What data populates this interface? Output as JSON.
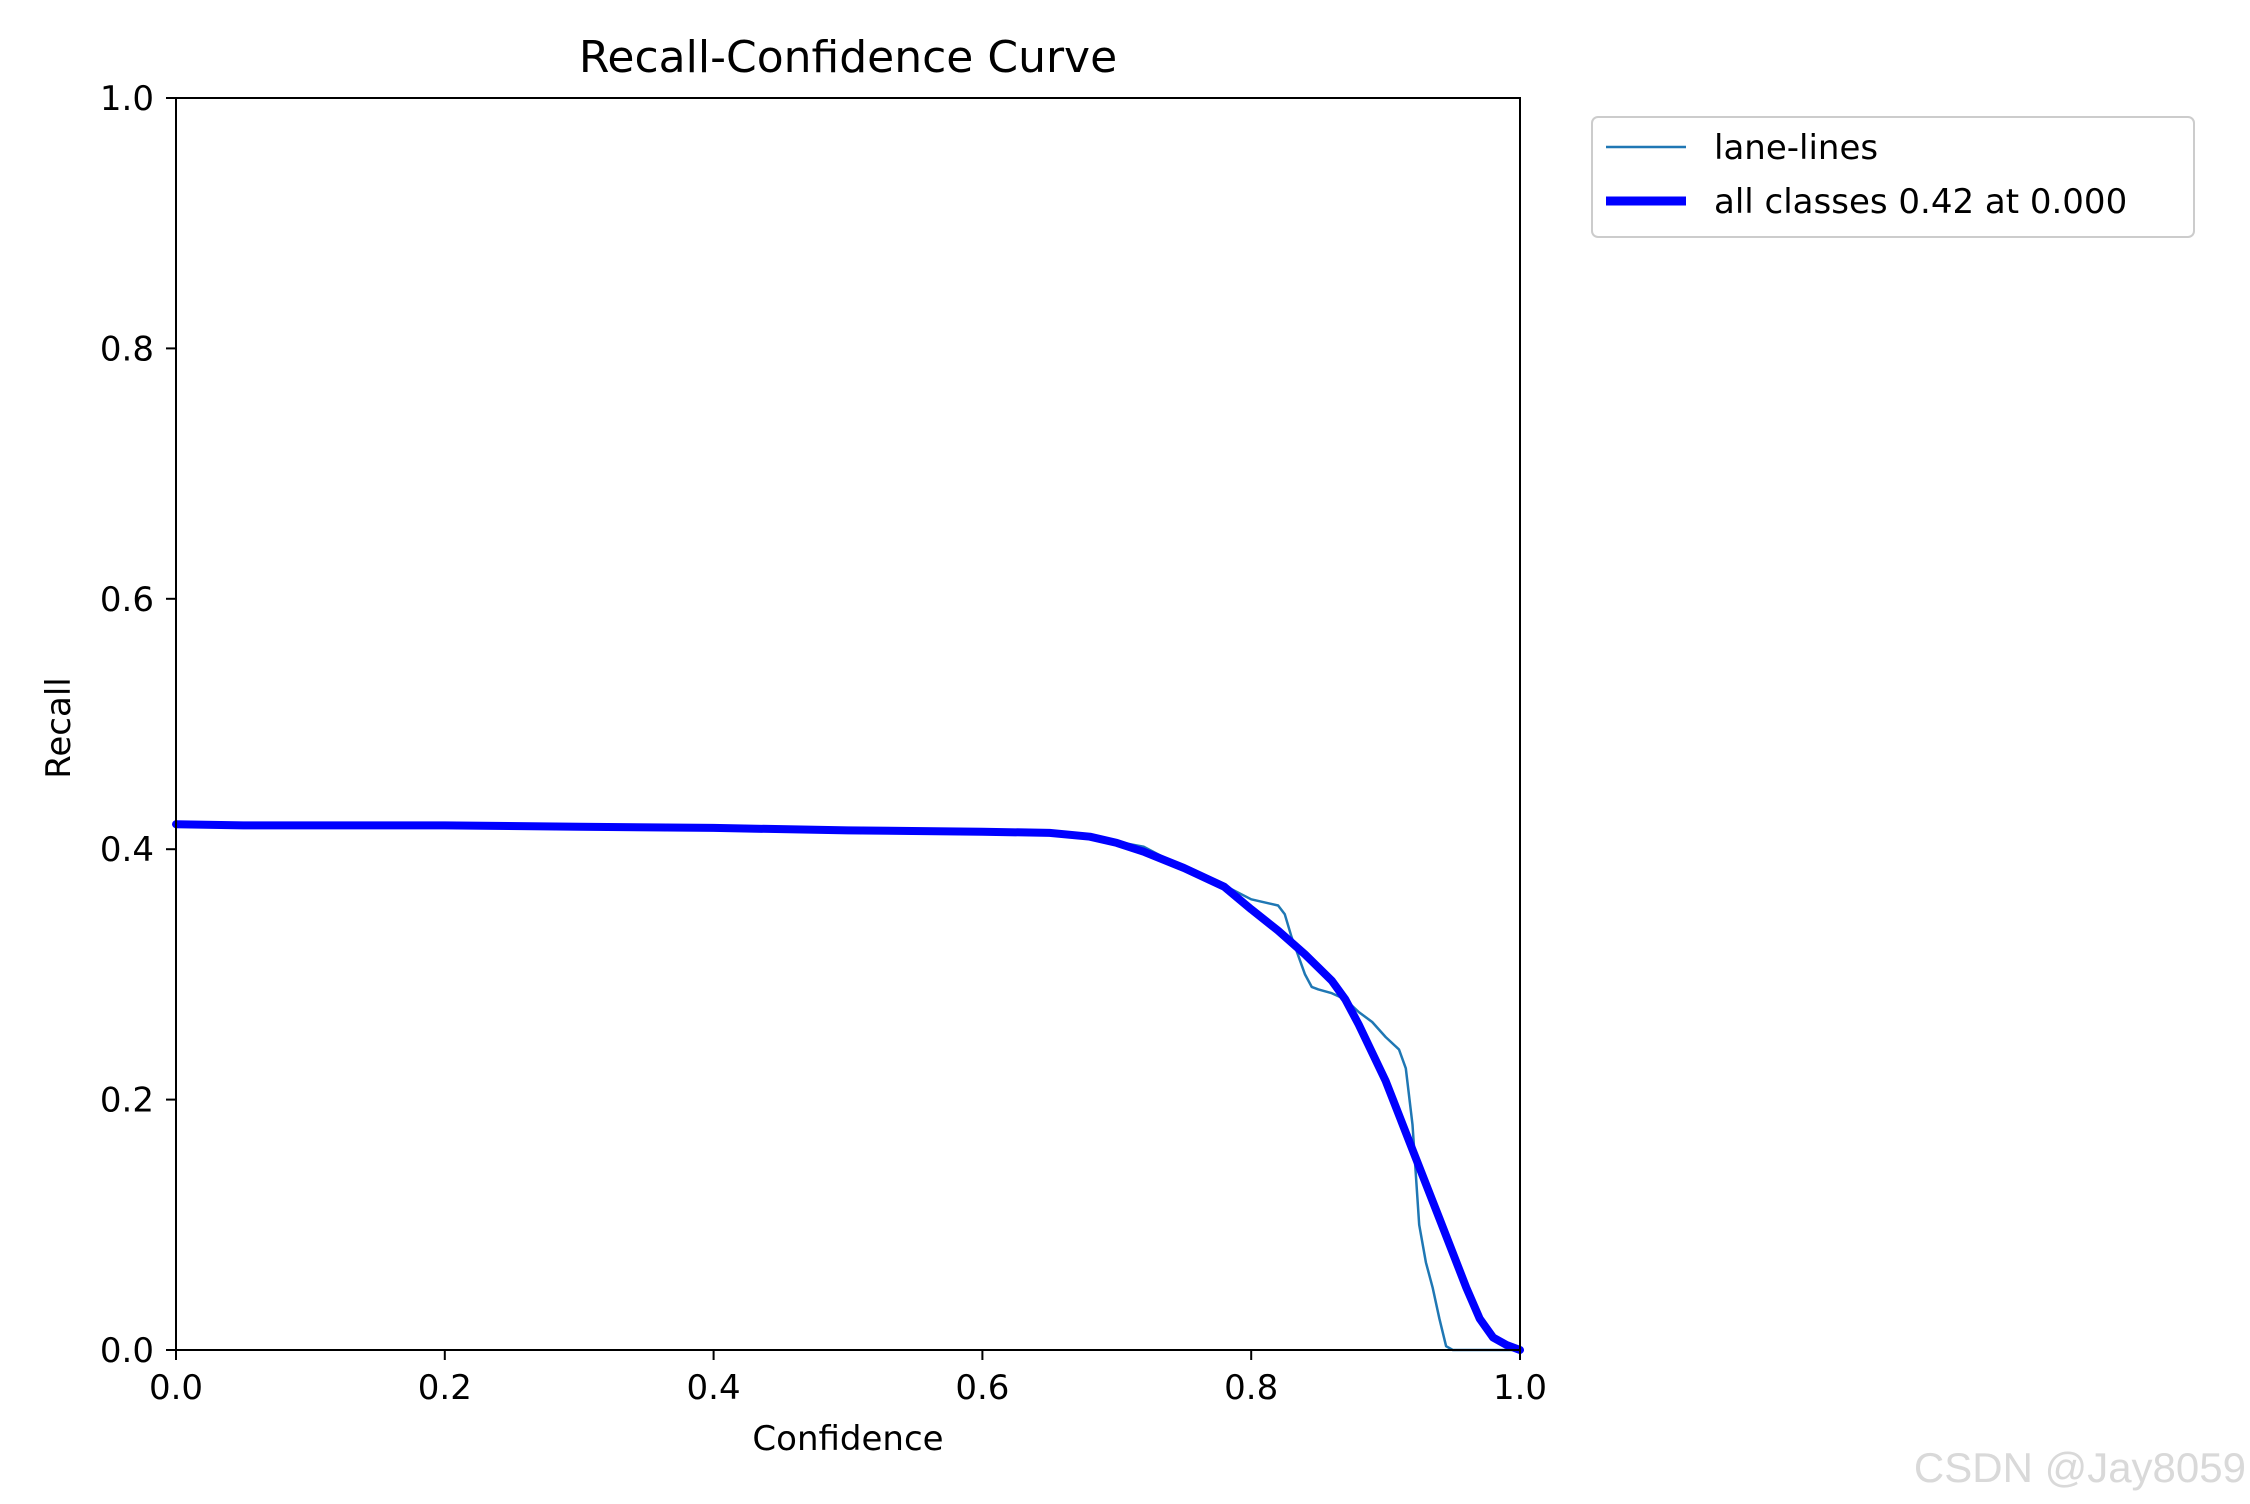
{
  "chart_data": {
    "type": "line",
    "title": "Recall-Confidence Curve",
    "xlabel": "Confidence",
    "ylabel": "Recall",
    "xlim": [
      0,
      1
    ],
    "ylim": [
      0,
      1
    ],
    "x_ticks": [
      "0.0",
      "0.2",
      "0.4",
      "0.6",
      "0.8",
      "1.0"
    ],
    "y_ticks": [
      "0.0",
      "0.2",
      "0.4",
      "0.6",
      "0.8",
      "1.0"
    ],
    "grid": false,
    "legend_position": "outside-top-right",
    "series": [
      {
        "name": "lane-lines",
        "color": "#1f77b4",
        "style": "thin",
        "x": [
          0.0,
          0.05,
          0.1,
          0.2,
          0.3,
          0.4,
          0.5,
          0.6,
          0.65,
          0.68,
          0.7,
          0.72,
          0.75,
          0.78,
          0.8,
          0.82,
          0.825,
          0.83,
          0.84,
          0.845,
          0.85,
          0.86,
          0.87,
          0.88,
          0.89,
          0.9,
          0.91,
          0.915,
          0.92,
          0.925,
          0.93,
          0.935,
          0.94,
          0.945,
          0.95,
          0.96,
          0.98,
          1.0
        ],
        "y": [
          0.42,
          0.419,
          0.419,
          0.419,
          0.418,
          0.417,
          0.415,
          0.414,
          0.413,
          0.41,
          0.406,
          0.402,
          0.385,
          0.371,
          0.36,
          0.355,
          0.348,
          0.33,
          0.3,
          0.29,
          0.288,
          0.285,
          0.28,
          0.27,
          0.262,
          0.25,
          0.24,
          0.225,
          0.18,
          0.1,
          0.07,
          0.05,
          0.025,
          0.003,
          0.0,
          0.0,
          0.0,
          0.0
        ]
      },
      {
        "name": "all classes 0.42 at 0.000",
        "color": "#0000ff",
        "style": "thick",
        "x": [
          0.0,
          0.05,
          0.1,
          0.2,
          0.3,
          0.4,
          0.5,
          0.6,
          0.65,
          0.68,
          0.7,
          0.72,
          0.75,
          0.78,
          0.8,
          0.82,
          0.84,
          0.86,
          0.87,
          0.88,
          0.9,
          0.92,
          0.94,
          0.96,
          0.97,
          0.98,
          0.99,
          1.0
        ],
        "y": [
          0.42,
          0.419,
          0.419,
          0.419,
          0.418,
          0.417,
          0.415,
          0.414,
          0.413,
          0.41,
          0.405,
          0.398,
          0.385,
          0.37,
          0.352,
          0.335,
          0.316,
          0.295,
          0.28,
          0.26,
          0.215,
          0.16,
          0.105,
          0.05,
          0.025,
          0.01,
          0.004,
          0.0
        ]
      }
    ]
  },
  "watermark": "CSDN @Jay8059"
}
